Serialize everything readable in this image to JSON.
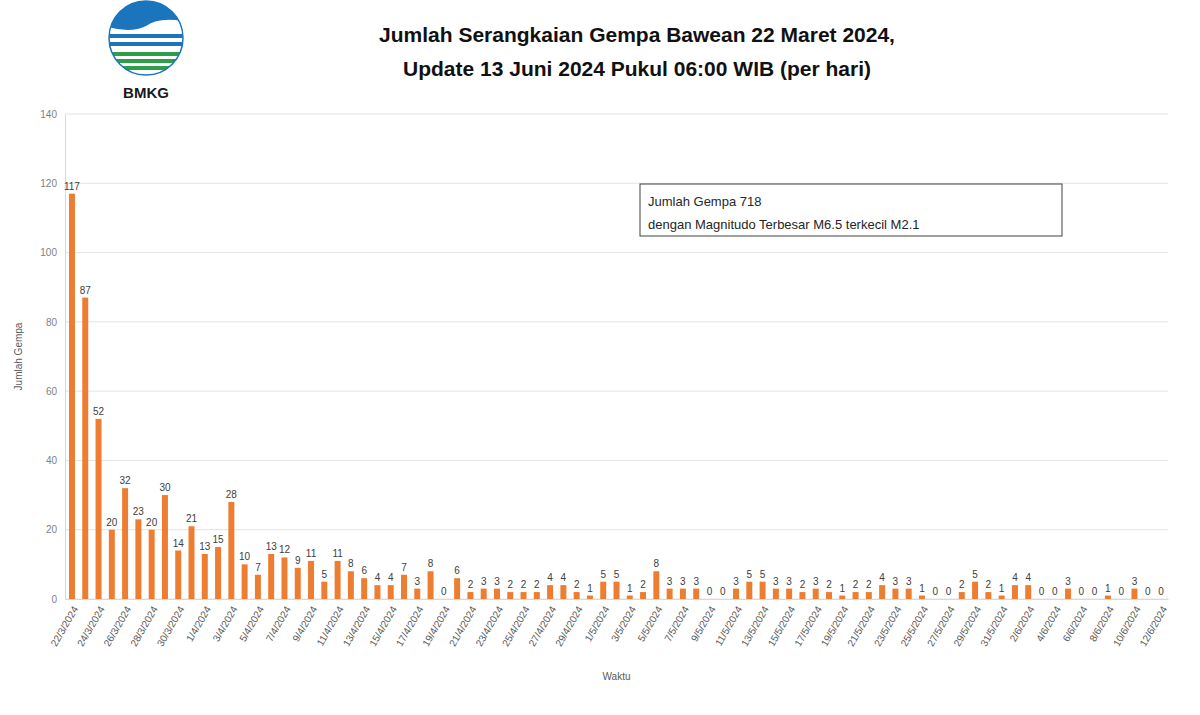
{
  "chart_data": {
    "type": "bar",
    "title": "Jumlah Serangkaian Gempa Bawean 22 Maret 2024,",
    "subtitle": "Update 13 Juni 2024 Pukul 06:00 WIB (per hari)",
    "logo_text": "BMKG",
    "y_label": "Jumlah Gempa",
    "x_label": "Waktu",
    "annotations": [
      "Jumlah Gempa 718",
      "dengan Magnitudo Terbesar M6.5 terkecil M2.1"
    ],
    "categories": [
      "22/3/2024",
      null,
      "24/3/2024",
      null,
      "26/3/2024",
      null,
      "28/3/2024",
      null,
      "30/3/2024",
      null,
      "1/4/2024",
      null,
      "3/4/2024",
      null,
      "5/4/2024",
      null,
      "7/4/2024",
      null,
      "9/4/2024",
      null,
      "11/4/2024",
      null,
      "13/4/2024",
      null,
      "15/4/2024",
      null,
      "17/4/2024",
      null,
      "19/4/2024",
      null,
      "21/4/2024",
      null,
      "23/4/2024",
      null,
      "25/4/2024",
      null,
      "27/4/2024",
      null,
      "29/4/2024",
      null,
      "1/5/2024",
      null,
      "3/5/2024",
      null,
      "5/5/2024",
      null,
      "7/5/2024",
      null,
      "9/5/2024",
      null,
      "11/5/2024",
      null,
      "13/5/2024",
      null,
      "15/5/2024",
      null,
      "17/5/2024",
      null,
      "19/5/2024",
      null,
      "21/5/2024",
      null,
      "23/5/2024",
      null,
      "25/5/2024",
      null,
      "27/5/2024",
      null,
      "29/5/2024",
      null,
      "31/5/2024",
      null,
      "2/6/2024",
      null,
      "4/6/2024",
      null,
      "6/6/2024",
      null,
      "8/6/2024",
      null,
      "10/6/2024",
      null,
      "12/6/2024"
    ],
    "values": [
      117,
      87,
      52,
      20,
      32,
      23,
      20,
      30,
      14,
      21,
      13,
      15,
      28,
      10,
      7,
      13,
      12,
      9,
      11,
      5,
      11,
      8,
      6,
      4,
      4,
      7,
      3,
      8,
      0,
      6,
      2,
      3,
      3,
      2,
      2,
      2,
      4,
      4,
      2,
      1,
      5,
      5,
      1,
      2,
      8,
      3,
      3,
      3,
      0,
      0,
      3,
      5,
      5,
      3,
      3,
      2,
      3,
      2,
      1,
      2,
      2,
      4,
      3,
      3,
      1,
      0,
      0,
      2,
      5,
      2,
      1,
      4,
      4,
      0,
      0,
      3,
      0,
      0,
      1,
      0,
      3,
      0,
      0
    ],
    "color": "#ed7d31",
    "ylim": [
      0,
      140
    ],
    "yticks": [
      0,
      20,
      40,
      60,
      80,
      100,
      120,
      140
    ],
    "grid": true,
    "data_labels": true
  }
}
